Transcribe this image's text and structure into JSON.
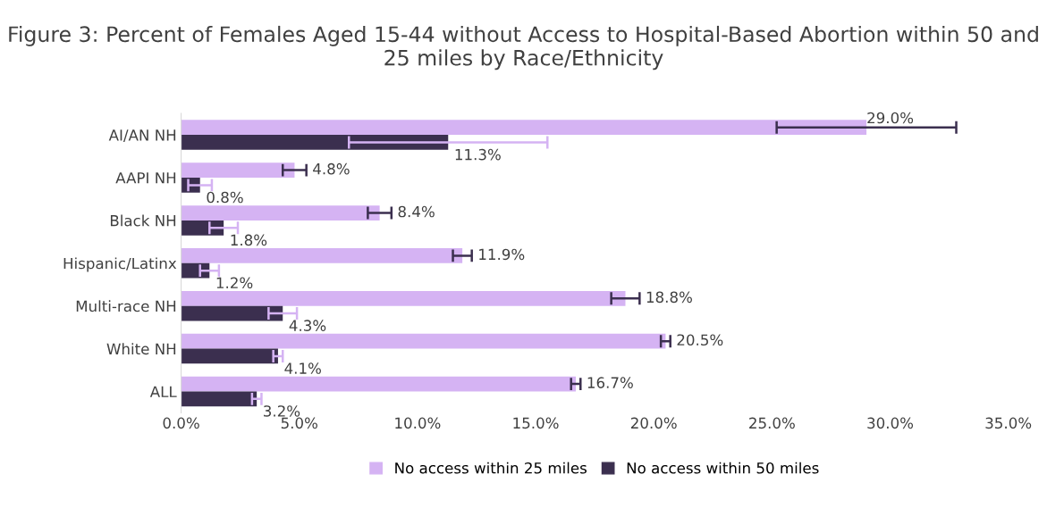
{
  "chart_data": {
    "type": "bar",
    "orientation": "horizontal",
    "title": "Figure 3: Percent of Females Aged 15-44 without Access to Hospital-Based Abortion within 50 and 25 miles by Race/Ethnicity",
    "categories": [
      "AI/AN NH",
      "AAPI NH",
      "Black NH",
      "Hispanic/Latinx",
      "Multi-race NH",
      "White NH",
      "ALL"
    ],
    "series": [
      {
        "name": "No access within 25 miles",
        "color": "#d5b3f3",
        "values": [
          29.0,
          4.8,
          8.4,
          11.9,
          18.8,
          20.5,
          16.7
        ],
        "errors": [
          3.8,
          0.5,
          0.5,
          0.4,
          0.6,
          0.2,
          0.2
        ],
        "value_labels": [
          "29.0%",
          "4.8%",
          "8.4%",
          "11.9%",
          "18.8%",
          "20.5%",
          "16.7%"
        ]
      },
      {
        "name": "No access within 50 miles",
        "color": "#3b2f4f",
        "values": [
          11.3,
          0.8,
          1.8,
          1.2,
          4.3,
          4.1,
          3.2
        ],
        "errors": [
          4.2,
          0.5,
          0.6,
          0.4,
          0.6,
          0.2,
          0.2
        ],
        "value_labels": [
          "11.3%",
          "0.8%",
          "1.8%",
          "1.2%",
          "4.3%",
          "4.1%",
          "3.2%"
        ]
      }
    ],
    "xlim": [
      0,
      35
    ],
    "xticks": [
      {
        "value": 0,
        "label": "0.0%"
      },
      {
        "value": 5,
        "label": "5.0%"
      },
      {
        "value": 10,
        "label": "10.0%"
      },
      {
        "value": 15,
        "label": "15.0%"
      },
      {
        "value": 20,
        "label": "20.0%"
      },
      {
        "value": 25,
        "label": "25.0%"
      },
      {
        "value": 30,
        "label": "30.0%"
      },
      {
        "value": 35,
        "label": "35.0%"
      }
    ],
    "grid": false,
    "legend": "bottom"
  }
}
